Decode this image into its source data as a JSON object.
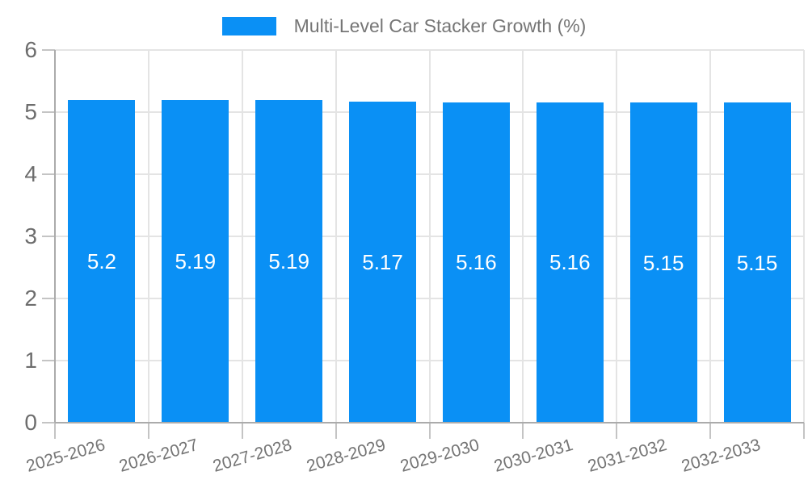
{
  "chart_data": {
    "type": "bar",
    "title": "Multi-Level Car Stacker Growth (%)",
    "legend": [
      "Multi-Level Car Stacker Growth (%)"
    ],
    "legend_position": "top-center",
    "categories": [
      "2025-2026",
      "2026-2027",
      "2027-2028",
      "2028-2029",
      "2029-2030",
      "2030-2031",
      "2031-2032",
      "2032-2033"
    ],
    "values": [
      5.2,
      5.19,
      5.19,
      5.17,
      5.16,
      5.16,
      5.15,
      5.15
    ],
    "bar_labels": [
      "5.2",
      "5.19",
      "5.19",
      "5.17",
      "5.16",
      "5.16",
      "5.15",
      "5.15"
    ],
    "xlabel": "",
    "ylabel": "",
    "ylim": [
      0,
      6
    ],
    "yticks": [
      0,
      1,
      2,
      3,
      4,
      5,
      6
    ],
    "ytick_labels": [
      "0",
      "1",
      "2",
      "3",
      "4",
      "5",
      "6"
    ],
    "grid": true,
    "colors": {
      "bar": "#0a90f5",
      "bar_label": "#ffffff",
      "grid": "#e4e4e4",
      "axis": "#ababab",
      "tick": "#c4c4c4",
      "y_label": "#6d6d6d",
      "x_label": "#757575",
      "legend_text": "#757575"
    }
  }
}
